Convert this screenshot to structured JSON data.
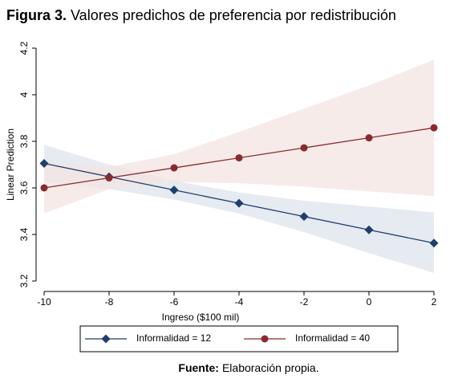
{
  "chart_data": {
    "type": "line",
    "title_label": "Figura 3.",
    "title": "Valores predichos de preferencia por redistribución",
    "x_label": "Ingreso ($100 mil)",
    "y_label": "Linear Prediction",
    "x": [
      -10,
      -8,
      -6,
      -4,
      -2,
      0,
      2
    ],
    "xlim": [
      -10,
      2
    ],
    "xticks": [
      -10,
      -8,
      -6,
      -4,
      -2,
      0,
      2
    ],
    "ylim": [
      3.2,
      4.2
    ],
    "yticks": [
      3.2,
      3.4,
      3.6,
      3.8,
      4,
      4.2
    ],
    "series": [
      {
        "name": "Informalidad = 12",
        "color": "#1f3f6e",
        "band_color": "#dde3ec",
        "marker": "diamond",
        "values": [
          3.705,
          3.648,
          3.591,
          3.534,
          3.477,
          3.42,
          3.363
        ],
        "upper": [
          3.785,
          3.7,
          3.63,
          3.58,
          3.545,
          3.52,
          3.495
        ],
        "lower": [
          3.625,
          3.595,
          3.55,
          3.49,
          3.41,
          3.32,
          3.235
        ]
      },
      {
        "name": "Informalidad = 40",
        "color": "#8b2a2e",
        "band_color": "#f4e4e2",
        "marker": "circle",
        "values": [
          3.6,
          3.643,
          3.686,
          3.729,
          3.772,
          3.815,
          3.858
        ],
        "upper": [
          3.71,
          3.69,
          3.745,
          3.84,
          3.94,
          4.04,
          4.15
        ],
        "lower": [
          3.49,
          3.595,
          3.625,
          3.62,
          3.605,
          3.585,
          3.565
        ]
      }
    ],
    "source_label": "Fuente:",
    "source": "Elaboración propia."
  }
}
